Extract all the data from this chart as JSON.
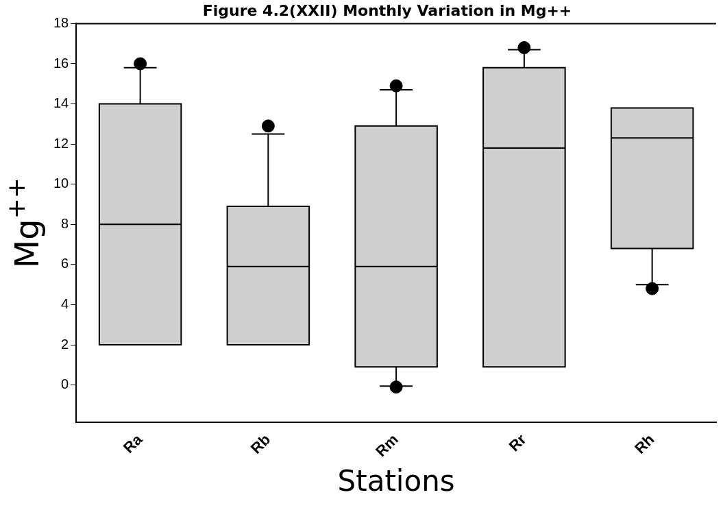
{
  "chart_data": {
    "type": "box",
    "title": "Figure 4.2(XXII) Monthly Variation in Mg++",
    "xlabel": "Stations",
    "ylabel": "Mg$^{++}$",
    "categories": [
      "Ra",
      "Rb",
      "Rm",
      "Rr",
      "Rh"
    ],
    "color": "#cfcfcf",
    "boxes": [
      {
        "low": 2,
        "q1": 2,
        "median": 8,
        "q3": 14,
        "high": 15.8,
        "outliers": [
          16
        ]
      },
      {
        "low": 2,
        "q1": 2,
        "median": 5.9,
        "q3": 8.9,
        "high": 12.5,
        "outliers": [
          12.9
        ]
      },
      {
        "low": -0.05,
        "q1": 0.9,
        "median": 5.9,
        "q3": 12.9,
        "high": 14.7,
        "outliers": [
          14.9,
          -0.1
        ]
      },
      {
        "low": 0.9,
        "q1": 0.9,
        "median": 11.8,
        "q3": 15.8,
        "high": 16.7,
        "outliers": [
          16.8
        ]
      },
      {
        "low": 5,
        "q1": 6.8,
        "median": 12.3,
        "q3": 13.8,
        "high": 13.8,
        "outliers": [
          4.8
        ]
      }
    ],
    "ylim": [
      -1.85,
      18
    ],
    "yticks": [
      0,
      2,
      4,
      6,
      8,
      10,
      12,
      14,
      16,
      18
    ],
    "grid": false,
    "legend": false
  }
}
